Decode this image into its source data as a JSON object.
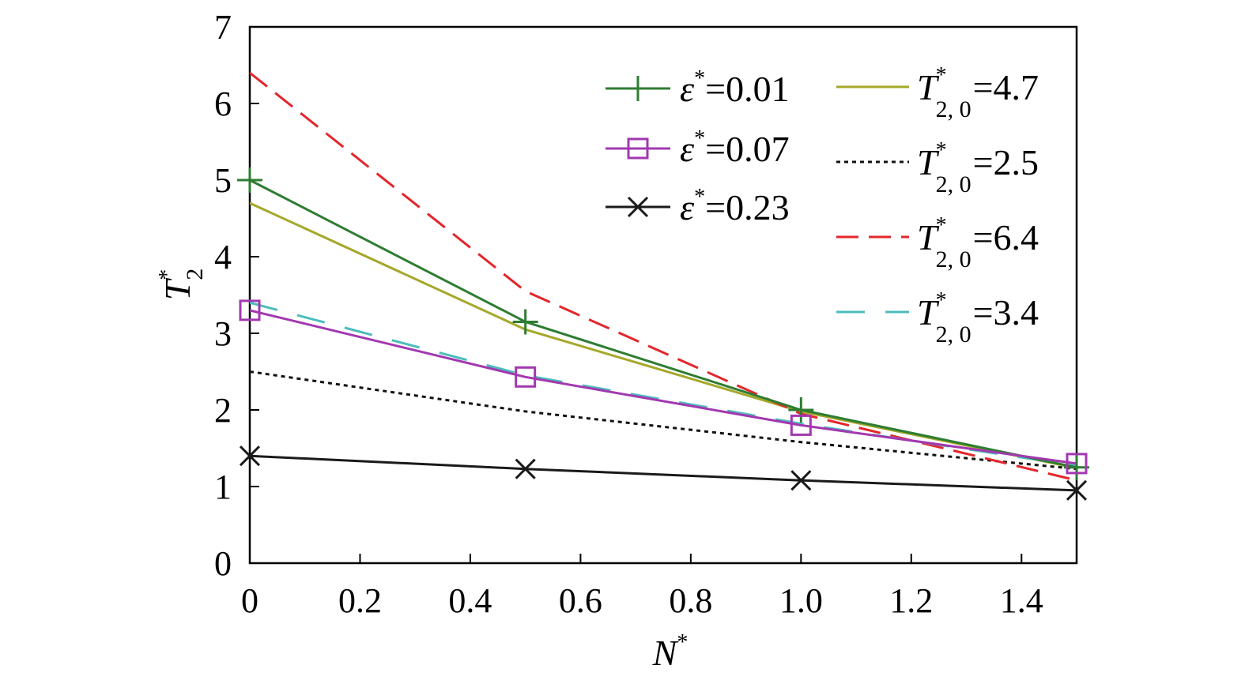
{
  "chart_data": {
    "type": "line",
    "xlabel": "N*",
    "ylabel": "T2*",
    "xlim": [
      0,
      1.5
    ],
    "ylim": [
      0,
      7
    ],
    "x_ticks": [
      "0",
      "0.2",
      "0.4",
      "0.6",
      "0.8",
      "1.0",
      "1.2",
      "1.4"
    ],
    "x_tick_values": [
      0,
      0.2,
      0.4,
      0.6,
      0.8,
      1.0,
      1.2,
      1.4
    ],
    "y_ticks": [
      "0",
      "1",
      "2",
      "3",
      "4",
      "5",
      "6",
      "7"
    ],
    "y_tick_values": [
      0,
      1,
      2,
      3,
      4,
      5,
      6,
      7
    ],
    "legend_position": "top-right",
    "series": [
      {
        "name": "ε*=0.01",
        "legend_symbol": "ε",
        "legend_value": "=0.01",
        "x": [
          0,
          0.5,
          1.0,
          1.5
        ],
        "values": [
          5.0,
          3.15,
          2.0,
          1.25
        ],
        "color": "#2e7d32",
        "style": "solid",
        "marker": "plus"
      },
      {
        "name": "ε*=0.07",
        "legend_symbol": "ε",
        "legend_value": "=0.07",
        "x": [
          0,
          0.5,
          1.0,
          1.5
        ],
        "values": [
          3.3,
          2.43,
          1.8,
          1.3
        ],
        "color": "#a238b0",
        "style": "solid",
        "marker": "square"
      },
      {
        "name": "ε*=0.23",
        "legend_symbol": "ε",
        "legend_value": "=0.23",
        "x": [
          0,
          0.5,
          1.0,
          1.5
        ],
        "values": [
          1.4,
          1.23,
          1.08,
          0.95
        ],
        "color": "#1a1a1a",
        "style": "solid",
        "marker": "x"
      },
      {
        "name": "T2,0*=4.7",
        "legend_symbol": "T",
        "legend_sub": "2, 0",
        "legend_value": "=4.7",
        "x": [
          0,
          0.5,
          1.0,
          1.5
        ],
        "values": [
          4.7,
          3.05,
          1.98,
          1.24
        ],
        "color": "#a5a82a",
        "style": "solid",
        "marker": "none"
      },
      {
        "name": "T2,0*=2.5",
        "legend_symbol": "T",
        "legend_sub": "2, 0",
        "legend_value": "=2.5",
        "x": [
          0,
          0.5,
          1.0,
          1.5
        ],
        "values": [
          2.5,
          1.98,
          1.58,
          1.23
        ],
        "color": "#111111",
        "style": "dotted",
        "marker": "none"
      },
      {
        "name": "T2,0*=6.4",
        "legend_symbol": "T",
        "legend_sub": "2, 0",
        "legend_value": "=6.4",
        "x": [
          0,
          0.5,
          1.0,
          1.5
        ],
        "values": [
          6.4,
          3.55,
          1.95,
          1.08
        ],
        "color": "#e3262b",
        "style": "dashed",
        "marker": "none"
      },
      {
        "name": "T2,0*=3.4",
        "legend_symbol": "T",
        "legend_sub": "2, 0",
        "legend_value": "=3.4",
        "x": [
          0,
          0.5,
          1.0,
          1.5
        ],
        "values": [
          3.4,
          2.45,
          1.82,
          1.27
        ],
        "color": "#4dbcbc",
        "style": "longdash",
        "marker": "none"
      }
    ]
  }
}
